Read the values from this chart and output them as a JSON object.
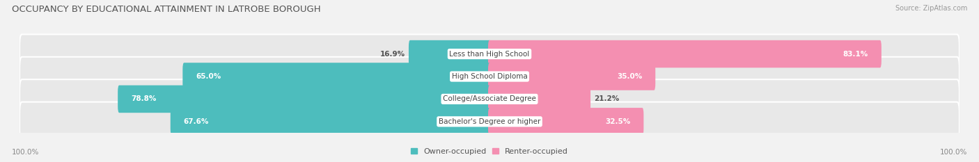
{
  "title": "OCCUPANCY BY EDUCATIONAL ATTAINMENT IN LATROBE BOROUGH",
  "source": "Source: ZipAtlas.com",
  "categories": [
    "Less than High School",
    "High School Diploma",
    "College/Associate Degree",
    "Bachelor's Degree or higher"
  ],
  "owner_values": [
    16.9,
    65.0,
    78.8,
    67.6
  ],
  "renter_values": [
    83.1,
    35.0,
    21.2,
    32.5
  ],
  "owner_color": "#4DBDBD",
  "renter_color": "#F48FB1",
  "bg_color": "#F2F2F2",
  "row_bg_color": "#E8E8E8",
  "title_fontsize": 9.5,
  "source_fontsize": 7,
  "label_fontsize": 7.5,
  "bar_label_fontsize": 7.5,
  "legend_fontsize": 8,
  "axis_label_fontsize": 7.5,
  "bar_height": 0.62,
  "left_axis_label": "100.0%",
  "right_axis_label": "100.0%",
  "total_width": 100.0
}
